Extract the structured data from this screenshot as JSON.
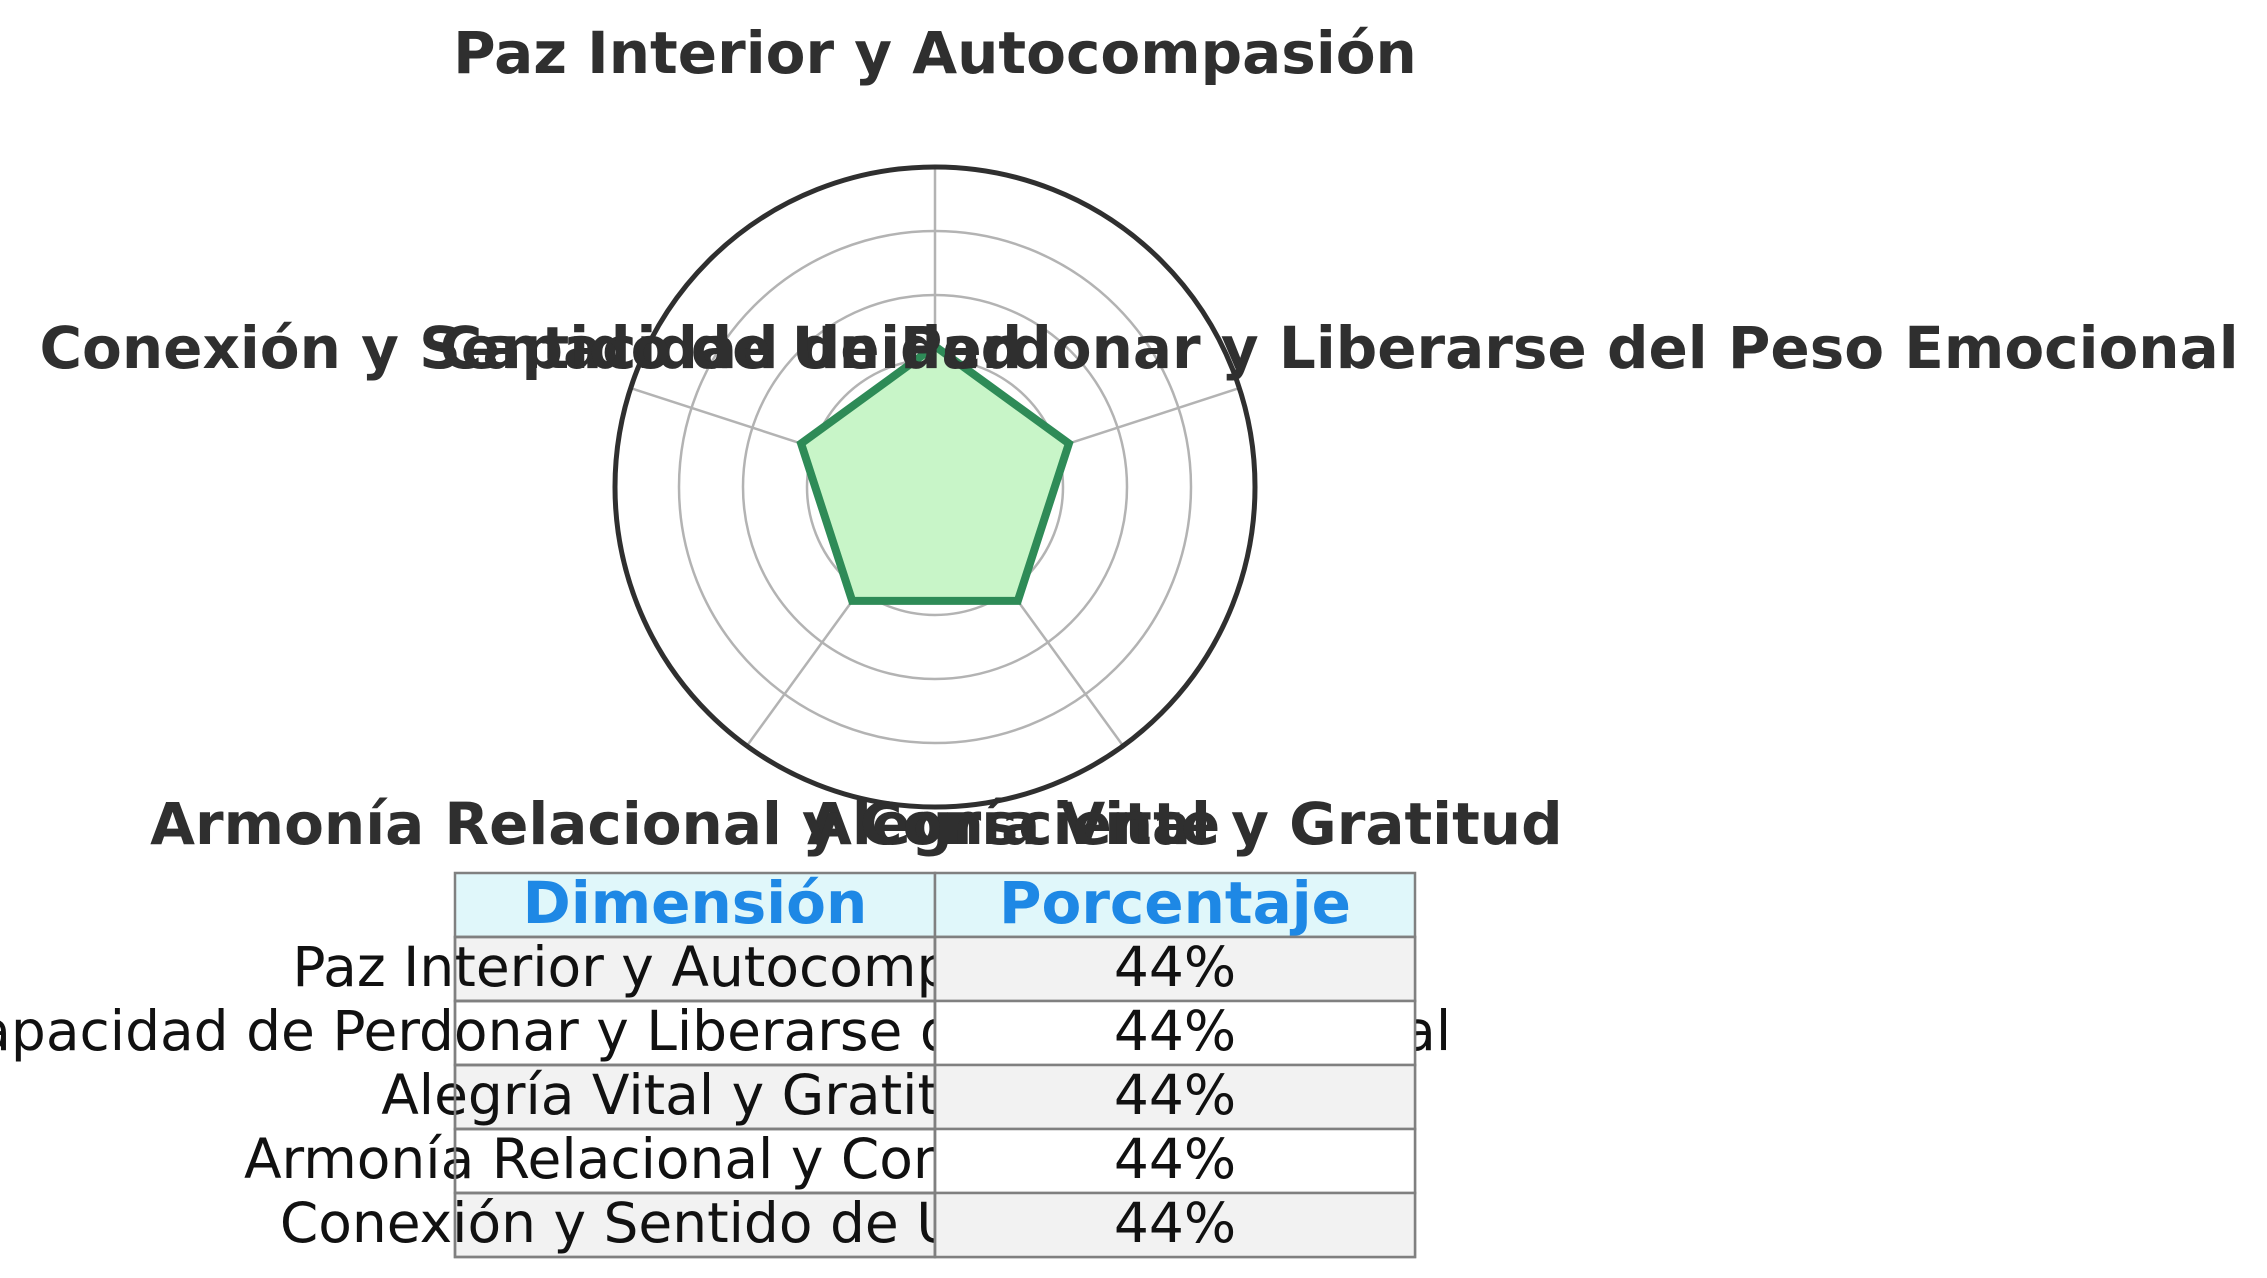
{
  "chart_data": {
    "type": "radar",
    "axes": [
      "Paz Interior y Autocompasión",
      "Capacidad de Perdonar y Liberarse del Peso Emocional",
      "Alegría Vital y Gratitud",
      "Armonía Relacional y Consciente",
      "Conexión y Sentido de Unidad"
    ],
    "series": [
      {
        "values": [
          44,
          44,
          44,
          44,
          44
        ]
      }
    ],
    "rlim": [
      0,
      100
    ],
    "grid_rings": [
      20,
      40,
      60,
      80
    ],
    "grid": true,
    "colors": {
      "line": "#2e8b57",
      "fill": "#c8f5c8",
      "grid": "#b3b3b3",
      "outline": "#2f2f2f",
      "label": "#2f2f2f"
    }
  },
  "table": {
    "headers": [
      "Dimensión",
      "Porcentaje"
    ],
    "rows": [
      [
        "Paz Interior y Autocompasión",
        "44%"
      ],
      [
        "Capacidad de Perdonar y Liberarse del Peso Emocional",
        "44%"
      ],
      [
        "Alegría Vital y Gratitud",
        "44%"
      ],
      [
        "Armonía Relacional y Consciente",
        "44%"
      ],
      [
        "Conexión y Sentido de Unidad",
        "44%"
      ]
    ],
    "colors": {
      "header_bg": "#e0f7fa",
      "header_text": "#1e88e5",
      "row_bg_odd": "#f2f2f2",
      "row_bg_even": "#ffffff",
      "border": "#808080",
      "text": "#111111"
    }
  }
}
